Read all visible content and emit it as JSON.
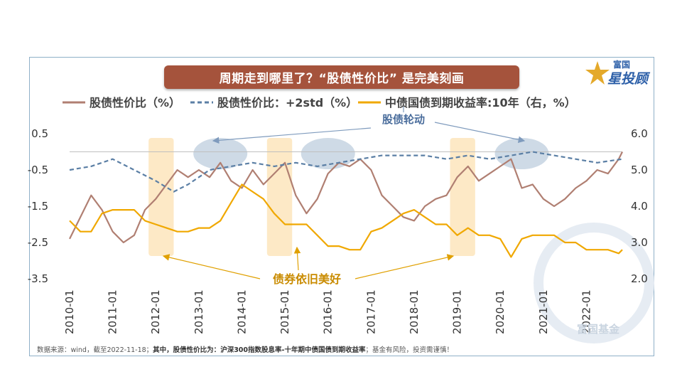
{
  "title": "周期走到哪里了？“股债性价比” 是完美刻画",
  "logo": {
    "line1": "富国",
    "line2": "星投顾"
  },
  "watermark": "富国基金",
  "footnote": {
    "prefix": "数据来源：wind，截至2022-11-18；",
    "bold": "其中，股债性价比为：",
    "mid_bold": "沪深300指数股息率-十年期中债国债到期收益率",
    "suffix": "；基金有风险，投资需谨慎！"
  },
  "annotations": {
    "rotation": "股债轮动",
    "bond": "债券依旧美好"
  },
  "colors": {
    "ratio": "#b07f72",
    "std": "#5b7fa5",
    "yield": "#f0a800",
    "highlight": "#fde7c0",
    "ellipse": "#c5d3e2",
    "note_blue": "#4a6d9c",
    "note_gold": "#c98b00"
  },
  "chart_data": {
    "type": "line",
    "title": "周期走到哪里了？“股债性价比” 是完美刻画",
    "legend_position": "top",
    "x_ticks": [
      "2010-01",
      "2011-01",
      "2012-01",
      "2013-01",
      "2014-01",
      "2015-01",
      "2016-01",
      "2017-01",
      "2018-01",
      "2019-01",
      "2020-01",
      "2021-01",
      "2022-01"
    ],
    "x_range": [
      "2010-01",
      "2022-11"
    ],
    "y_left": {
      "range": [
        -3.5,
        0.5
      ],
      "ticks": [
        "0.5",
        "-0.5",
        "-1.5",
        "-2.5",
        "-3.5"
      ]
    },
    "y_right": {
      "range": [
        2.0,
        6.0
      ],
      "ticks": [
        "6.0",
        "5.0",
        "4.0",
        "3.0",
        "2.0"
      ]
    },
    "reference_line": 0,
    "highlight_periods": [
      [
        "2011-11",
        "2012-06"
      ],
      [
        "2014-08",
        "2015-03"
      ],
      [
        "2018-11",
        "2019-06"
      ]
    ],
    "series": [
      {
        "name": "股债性价比（%）",
        "axis": "left",
        "style": "solid",
        "x": [
          "2010-01",
          "2010-04",
          "2010-07",
          "2010-10",
          "2011-01",
          "2011-04",
          "2011-07",
          "2011-10",
          "2012-01",
          "2012-04",
          "2012-07",
          "2012-10",
          "2013-01",
          "2013-04",
          "2013-07",
          "2013-10",
          "2014-01",
          "2014-04",
          "2014-07",
          "2014-10",
          "2015-01",
          "2015-04",
          "2015-07",
          "2015-10",
          "2016-01",
          "2016-04",
          "2016-07",
          "2016-10",
          "2017-01",
          "2017-04",
          "2017-07",
          "2017-10",
          "2018-01",
          "2018-04",
          "2018-07",
          "2018-10",
          "2019-01",
          "2019-04",
          "2019-07",
          "2019-10",
          "2020-01",
          "2020-04",
          "2020-07",
          "2020-10",
          "2021-01",
          "2021-04",
          "2021-07",
          "2021-10",
          "2022-01",
          "2022-04",
          "2022-07",
          "2022-10",
          "2022-11"
        ],
        "values": [
          -2.4,
          -1.8,
          -1.2,
          -1.6,
          -2.2,
          -2.5,
          -2.3,
          -1.6,
          -1.3,
          -0.9,
          -0.5,
          -0.7,
          -0.5,
          -0.7,
          -0.3,
          -0.8,
          -1.0,
          -0.5,
          -0.9,
          -0.6,
          -0.3,
          -1.2,
          -1.7,
          -1.3,
          -0.6,
          -0.3,
          -0.4,
          -0.2,
          -0.5,
          -1.2,
          -1.5,
          -1.8,
          -1.9,
          -1.5,
          -1.3,
          -1.2,
          -0.7,
          -0.4,
          -0.8,
          -0.6,
          -0.4,
          -0.2,
          -1.0,
          -0.9,
          -1.3,
          -1.5,
          -1.3,
          -1.0,
          -0.8,
          -0.5,
          -0.6,
          -0.2,
          0.0
        ]
      },
      {
        "name": "股债性价比：+2std（%）",
        "axis": "left",
        "style": "dashed",
        "x": [
          "2010-01",
          "2010-07",
          "2011-01",
          "2011-07",
          "2012-01",
          "2012-06",
          "2012-10",
          "2013-04",
          "2013-10",
          "2014-04",
          "2014-10",
          "2015-04",
          "2015-10",
          "2016-04",
          "2016-10",
          "2017-04",
          "2017-10",
          "2018-04",
          "2018-10",
          "2019-04",
          "2019-10",
          "2020-04",
          "2020-10",
          "2021-04",
          "2021-10",
          "2022-04",
          "2022-11"
        ],
        "values": [
          -0.5,
          -0.4,
          -0.2,
          -0.5,
          -0.8,
          -1.1,
          -0.9,
          -0.5,
          -0.4,
          -0.3,
          -0.4,
          -0.3,
          -0.4,
          -0.3,
          -0.2,
          -0.1,
          -0.1,
          -0.1,
          -0.2,
          -0.1,
          -0.2,
          -0.1,
          0.0,
          -0.1,
          -0.2,
          -0.3,
          -0.2
        ]
      },
      {
        "name": "中债国债到期收益率:10年（右，%）",
        "axis": "right",
        "style": "solid",
        "x": [
          "2010-01",
          "2010-04",
          "2010-07",
          "2010-10",
          "2011-01",
          "2011-04",
          "2011-07",
          "2011-10",
          "2012-01",
          "2012-04",
          "2012-07",
          "2012-10",
          "2013-01",
          "2013-04",
          "2013-07",
          "2013-10",
          "2014-01",
          "2014-04",
          "2014-07",
          "2014-10",
          "2015-01",
          "2015-04",
          "2015-07",
          "2015-10",
          "2016-01",
          "2016-04",
          "2016-07",
          "2016-10",
          "2017-01",
          "2017-04",
          "2017-07",
          "2017-10",
          "2018-01",
          "2018-04",
          "2018-07",
          "2018-10",
          "2019-01",
          "2019-04",
          "2019-07",
          "2019-10",
          "2020-01",
          "2020-04",
          "2020-07",
          "2020-10",
          "2021-01",
          "2021-04",
          "2021-07",
          "2021-10",
          "2022-01",
          "2022-04",
          "2022-07",
          "2022-10",
          "2022-11"
        ],
        "values": [
          3.6,
          3.3,
          3.3,
          3.8,
          3.9,
          3.9,
          3.9,
          3.6,
          3.5,
          3.4,
          3.3,
          3.3,
          3.4,
          3.4,
          3.6,
          4.1,
          4.6,
          4.4,
          4.2,
          3.8,
          3.5,
          3.5,
          3.5,
          3.2,
          2.9,
          2.9,
          2.8,
          2.8,
          3.3,
          3.4,
          3.6,
          3.8,
          3.9,
          3.7,
          3.5,
          3.5,
          3.2,
          3.4,
          3.2,
          3.2,
          3.1,
          2.6,
          3.1,
          3.2,
          3.2,
          3.2,
          3.0,
          3.0,
          2.8,
          2.8,
          2.8,
          2.7,
          2.8
        ]
      }
    ]
  }
}
